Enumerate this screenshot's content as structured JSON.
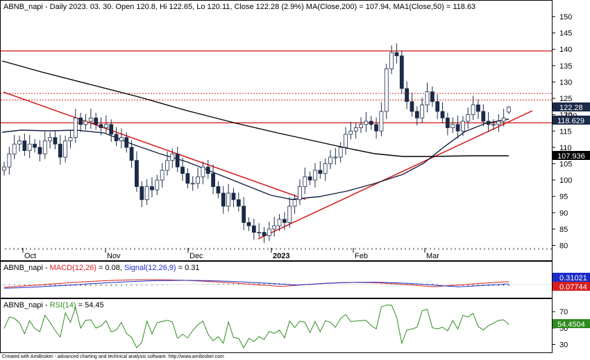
{
  "header": {
    "symbol": "ABNB_napi",
    "line1_rest": " - Daily 2023. 03. 30. Open 120.8, Hi 122.65, Lo 120.11, Close 122.28 (2.9%) MA(Close,200) = 107.94, MA1(Close,50) = 118.63",
    "macd_symbol": "ABNB_napi",
    "macd_sep": " - ",
    "macd_label": "MACD(12,26)",
    "macd_value": " = 0.08, ",
    "signal_label": "Signal(12,26,9)",
    "signal_value": " = 0.31",
    "rsi_symbol": "ABNB_napi",
    "rsi_sep": " - ",
    "rsi_label": "RSI(14)",
    "rsi_value": " = 54.45"
  },
  "price_tags": {
    "close": "122.28",
    "ma50": "118.629",
    "ma200": "107.936",
    "partial": "120",
    "signal": "0.31021",
    "macd": "0.07744",
    "rsi": "54.4504"
  },
  "x_labels": [
    "Oct",
    "Nov",
    "Dec",
    "2023",
    "Feb",
    "Mar"
  ],
  "footer": "Created with AmiBroker - advanced charting and technical analysis software. http://www.amibroker.com",
  "colors": {
    "candle_down": "#1b2a48",
    "candle_up_fill": "#ffffff",
    "ma200": "#000000",
    "ma50": "#102040",
    "trend": "#d62020",
    "macd": "#d62020",
    "signal": "#1c2cc8",
    "rsi": "#2e8b1e",
    "tag_close": "#1b2a48",
    "tag_signal": "#1c2cc8",
    "tag_macd": "#d62020",
    "tag_rsi": "#2e8b1e"
  },
  "chart_data": [
    {
      "type": "candlestick",
      "title": "ABNB_napi - Daily 2023. 03. 30. Open 120.8, Hi 122.65, Lo 120.11, Close 122.28 (2.9%) MA(Close,200) = 107.94, MA1(Close,50) = 118.63",
      "x_labels": [
        "Oct",
        "Nov",
        "Dec",
        "2023",
        "Feb",
        "Mar"
      ],
      "y_ticks": [
        80,
        85,
        90,
        95,
        100,
        105,
        110,
        115,
        120,
        125,
        130,
        135,
        140,
        145,
        150
      ],
      "ylim": [
        76,
        153
      ],
      "grid": false,
      "closes": [
        104,
        108,
        111,
        112,
        109,
        111,
        110,
        108,
        112,
        113,
        111,
        107,
        112,
        113,
        119,
        117,
        118,
        119,
        117,
        116,
        117,
        114,
        112,
        113,
        110,
        106,
        98,
        94,
        98,
        97,
        100,
        103,
        106,
        108,
        104,
        102,
        99,
        99,
        101,
        104,
        102,
        98,
        96,
        92,
        96,
        94,
        92,
        87,
        86,
        84,
        84,
        83,
        85,
        86,
        88,
        87,
        92,
        94,
        98,
        101,
        100,
        103,
        102,
        105,
        107,
        107,
        110,
        114,
        115,
        116,
        117,
        118,
        117,
        115,
        121,
        134,
        139,
        138,
        128,
        124,
        121,
        119,
        123,
        127,
        124,
        121,
        119,
        116,
        117,
        115,
        118,
        120,
        123,
        121,
        118,
        117,
        117,
        118,
        119,
        122.28
      ],
      "open_last": 120.8,
      "high_last": 122.65,
      "low_last": 120.11,
      "ma200_last": 107.94,
      "ma50_last": 118.63,
      "horizontal_levels": [
        {
          "value": 139.5,
          "style": "solid"
        },
        {
          "value": 126.5,
          "style": "dotted"
        },
        {
          "value": 124.5,
          "style": "dotted"
        },
        {
          "value": 117.5,
          "style": "solid"
        }
      ]
    },
    {
      "type": "line",
      "title": "ABNB_napi - MACD(12,26) = 0.08, Signal(12,26,9) = 0.31",
      "series": [
        {
          "name": "MACD(12,26)",
          "last": 0.08
        },
        {
          "name": "Signal(12,26,9)",
          "last": 0.31
        }
      ]
    },
    {
      "type": "line",
      "title": "ABNB_napi - RSI(14) = 54.45",
      "y_ticks": [
        30,
        50,
        70
      ],
      "ylim": [
        22,
        82
      ],
      "series": [
        {
          "name": "RSI(14)",
          "last": 54.45
        }
      ]
    }
  ]
}
